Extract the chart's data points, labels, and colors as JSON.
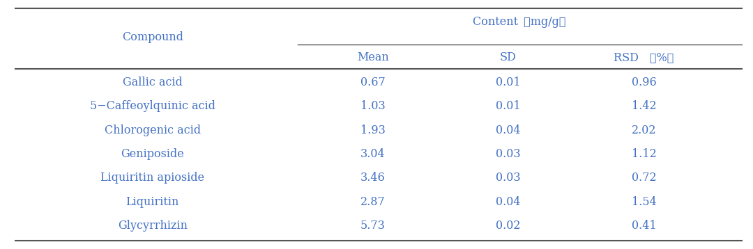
{
  "col_header1": "Compound",
  "col_header2": "Content （mg/g）",
  "content_label": "Content （mg/g）",
  "sub_headers": [
    "Mean",
    "SD",
    "RSD （%）"
  ],
  "rows": [
    [
      "Gallic acid",
      "0.67",
      "0.01",
      "0.96"
    ],
    [
      "5−Caffeoylquinic acid",
      "1.03",
      "0.01",
      "1.42"
    ],
    [
      "Chlorogenic acid",
      "1.93",
      "0.04",
      "2.02"
    ],
    [
      "Geniposide",
      "3.04",
      "0.03",
      "1.12"
    ],
    [
      "Liquiritin apioside",
      "3.46",
      "0.03",
      "0.72"
    ],
    [
      "Liquiritin",
      "2.87",
      "0.04",
      "1.54"
    ],
    [
      "Glycyrrhizin",
      "5.73",
      "0.02",
      "0.41"
    ]
  ],
  "text_color": "#4472C4",
  "line_color": "#555555",
  "bg_color": "#ffffff",
  "font_size": 11.5,
  "header_font_size": 11.5
}
